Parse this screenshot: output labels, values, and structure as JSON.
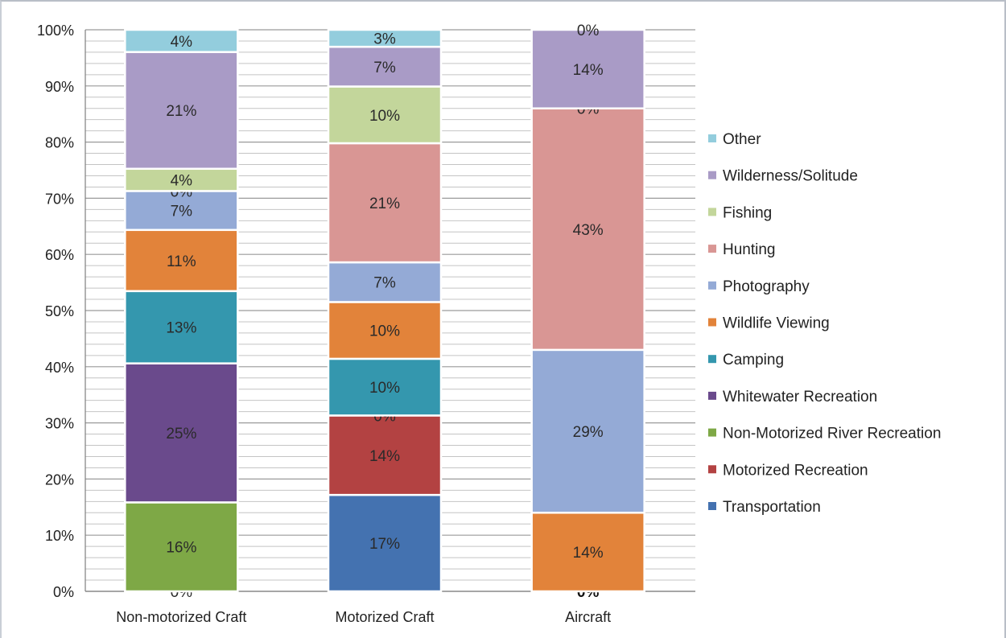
{
  "chart_data": {
    "type": "bar",
    "stacked": true,
    "normalized": true,
    "title": "",
    "xlabel": "",
    "ylabel": "",
    "ylim": [
      0,
      100
    ],
    "y_tick_labels": [
      "0%",
      "10%",
      "20%",
      "30%",
      "40%",
      "50%",
      "60%",
      "70%",
      "80%",
      "90%",
      "100%"
    ],
    "grid": true,
    "legend_position": "right",
    "categories": [
      "Non-motorized Craft",
      "Motorized Craft",
      "Aircraft"
    ],
    "series": [
      {
        "name": "Transportation",
        "color": "#4472b0",
        "values": [
          0,
          17,
          0
        ],
        "labels": [
          "0%",
          "17%",
          "0%"
        ]
      },
      {
        "name": "Motorized Recreation",
        "color": "#b34242",
        "values": [
          0,
          14,
          0
        ],
        "labels": [
          "",
          "14%",
          ""
        ]
      },
      {
        "name": "Non-Motorized River Recreation",
        "color": "#7ea846",
        "values": [
          16,
          0,
          0
        ],
        "labels": [
          "16%",
          "0%",
          ""
        ]
      },
      {
        "name": "Whitewater Recreation",
        "color": "#6a4a8c",
        "values": [
          25,
          0,
          0
        ],
        "labels": [
          "25%",
          "",
          ""
        ]
      },
      {
        "name": "Camping",
        "color": "#3497ae",
        "values": [
          13,
          10,
          0
        ],
        "labels": [
          "13%",
          "10%",
          ""
        ]
      },
      {
        "name": "Wildlife Viewing",
        "color": "#e2833a",
        "values": [
          11,
          10,
          14
        ],
        "labels": [
          "11%",
          "10%",
          "14%"
        ]
      },
      {
        "name": "Photography",
        "color": "#94aad6",
        "values": [
          7,
          7,
          29
        ],
        "labels": [
          "7%",
          "7%",
          "29%"
        ]
      },
      {
        "name": "Hunting",
        "color": "#d99694",
        "values": [
          0,
          21,
          43
        ],
        "labels": [
          "0%",
          "21%",
          "43%"
        ]
      },
      {
        "name": "Fishing",
        "color": "#c3d69b",
        "values": [
          4,
          10,
          0
        ],
        "labels": [
          "4%",
          "10%",
          "0%"
        ]
      },
      {
        "name": "Wilderness/Solitude",
        "color": "#a99bc6",
        "values": [
          21,
          7,
          14
        ],
        "labels": [
          "21%",
          "7%",
          "14%"
        ]
      },
      {
        "name": "Other",
        "color": "#93cddd",
        "values": [
          4,
          3,
          0
        ],
        "labels": [
          "4%",
          "3%",
          "0%"
        ]
      }
    ]
  }
}
